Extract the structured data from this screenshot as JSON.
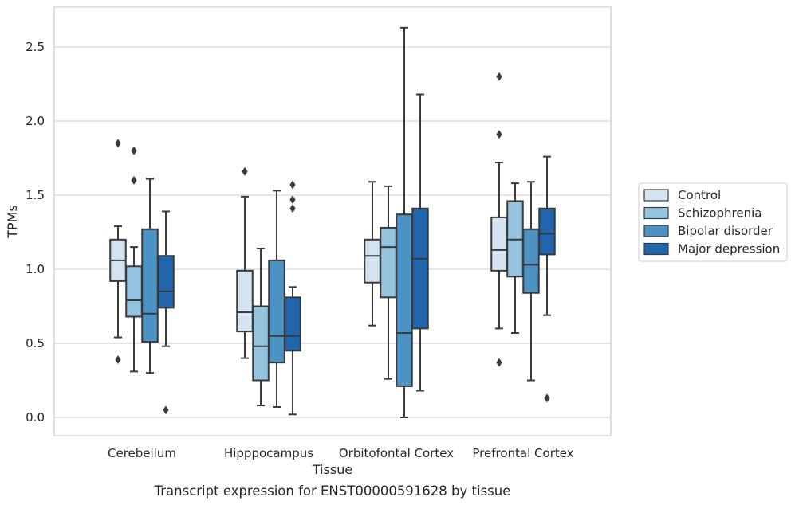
{
  "colors": {
    "Control": "#d4e3f2",
    "Schizophrenia": "#94c4df",
    "Bipolar disorder": "#4c92c3",
    "Major depression": "#2166ac",
    "line": "#3a3a3a",
    "grid": "#cccccc",
    "frame": "#cccccc"
  },
  "chart_data": {
    "type": "box",
    "xlabel": "Tissue",
    "ylabel": "TPMs",
    "caption": "Transcript expression for ENST00000591628 by tissue",
    "ylim": [
      -0.13,
      2.77
    ],
    "yticks": [
      0.0,
      0.5,
      1.0,
      1.5,
      2.0,
      2.5
    ],
    "ytick_labels": [
      "0.0",
      "0.5",
      "1.0",
      "1.5",
      "2.0",
      "2.5"
    ],
    "grid": "horizontal",
    "legend_position": "right",
    "categories": [
      "Cerebellum",
      "Hipppocampus",
      "Orbitofontal Cortex",
      "Prefrontal Cortex"
    ],
    "series": [
      {
        "name": "Control",
        "boxes": [
          {
            "whislo": 0.54,
            "q1": 0.92,
            "med": 1.06,
            "q3": 1.2,
            "whishi": 1.29,
            "fliers": [
              1.85,
              0.39
            ]
          },
          {
            "whislo": 0.4,
            "q1": 0.58,
            "med": 0.71,
            "q3": 0.99,
            "whishi": 1.49,
            "fliers": [
              1.66
            ]
          },
          {
            "whislo": 0.62,
            "q1": 0.91,
            "med": 1.09,
            "q3": 1.2,
            "whishi": 1.59,
            "fliers": []
          },
          {
            "whislo": 0.6,
            "q1": 0.99,
            "med": 1.13,
            "q3": 1.35,
            "whishi": 1.72,
            "fliers": [
              2.3,
              1.91,
              0.37
            ]
          }
        ]
      },
      {
        "name": "Schizophrenia",
        "boxes": [
          {
            "whislo": 0.31,
            "q1": 0.68,
            "med": 0.79,
            "q3": 1.02,
            "whishi": 1.15,
            "fliers": [
              1.8,
              1.6
            ]
          },
          {
            "whislo": 0.08,
            "q1": 0.25,
            "med": 0.48,
            "q3": 0.75,
            "whishi": 1.14,
            "fliers": []
          },
          {
            "whislo": 0.26,
            "q1": 0.81,
            "med": 1.15,
            "q3": 1.28,
            "whishi": 1.56,
            "fliers": []
          },
          {
            "whislo": 0.57,
            "q1": 0.95,
            "med": 1.2,
            "q3": 1.46,
            "whishi": 1.58,
            "fliers": []
          }
        ]
      },
      {
        "name": "Bipolar disorder",
        "boxes": [
          {
            "whislo": 0.3,
            "q1": 0.51,
            "med": 0.7,
            "q3": 1.27,
            "whishi": 1.61,
            "fliers": []
          },
          {
            "whislo": 0.07,
            "q1": 0.37,
            "med": 0.55,
            "q3": 1.06,
            "whishi": 1.53,
            "fliers": []
          },
          {
            "whislo": 0.0,
            "q1": 0.21,
            "med": 0.57,
            "q3": 1.37,
            "whishi": 2.63,
            "fliers": []
          },
          {
            "whislo": 0.25,
            "q1": 0.84,
            "med": 1.03,
            "q3": 1.27,
            "whishi": 1.59,
            "fliers": []
          }
        ]
      },
      {
        "name": "Major depression",
        "boxes": [
          {
            "whislo": 0.48,
            "q1": 0.74,
            "med": 0.85,
            "q3": 1.09,
            "whishi": 1.39,
            "fliers": [
              0.05
            ]
          },
          {
            "whislo": 0.02,
            "q1": 0.45,
            "med": 0.55,
            "q3": 0.81,
            "whishi": 0.88,
            "fliers": [
              1.57,
              1.47,
              1.41
            ]
          },
          {
            "whislo": 0.18,
            "q1": 0.6,
            "med": 1.07,
            "q3": 1.41,
            "whishi": 2.18,
            "fliers": []
          },
          {
            "whislo": 0.69,
            "q1": 1.1,
            "med": 1.24,
            "q3": 1.41,
            "whishi": 1.76,
            "fliers": [
              0.13
            ]
          }
        ]
      }
    ]
  }
}
